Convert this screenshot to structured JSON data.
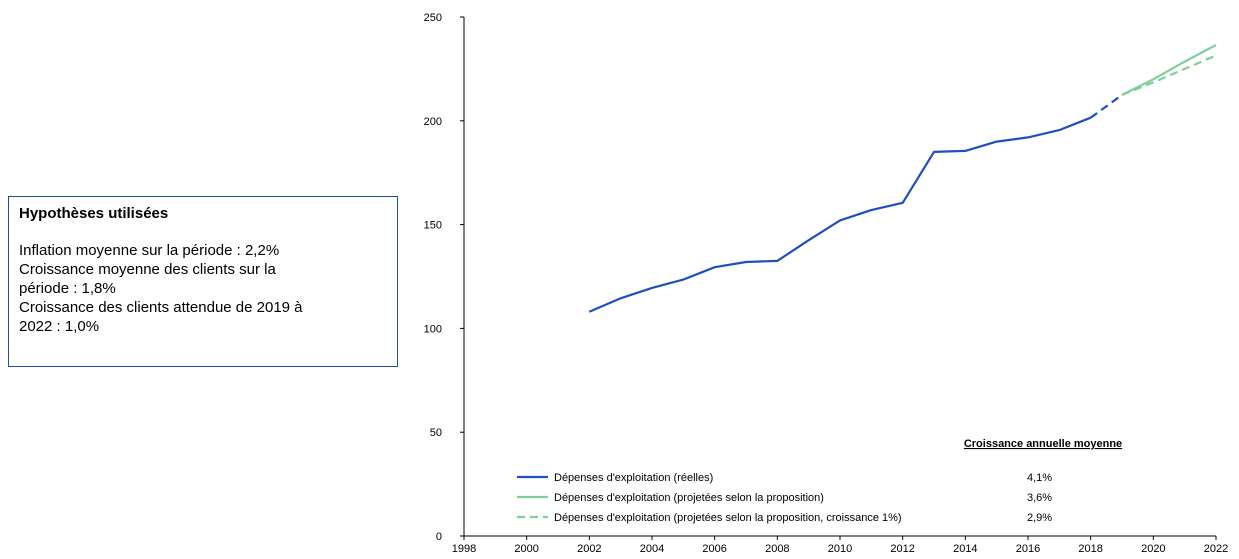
{
  "hypotheses": {
    "title": "Hypothèses utilisées",
    "lines": [
      "Inflation moyenne sur la période : 2,2%",
      "Croissance moyenne des clients sur la",
      "période : 1,8%",
      "Croissance des clients attendue de 2019 à",
      "2022 : 1,0%"
    ]
  },
  "chart_data": {
    "type": "line",
    "xlim": [
      1998,
      2022
    ],
    "ylim": [
      0,
      250
    ],
    "x_ticks": [
      1998,
      2000,
      2002,
      2004,
      2006,
      2008,
      2010,
      2012,
      2014,
      2016,
      2018,
      2020,
      2022
    ],
    "y_ticks": [
      0,
      50,
      100,
      150,
      200,
      250
    ],
    "grid": false,
    "legend_position": "bottom-right",
    "legend_header": "Croissance annuelle moyenne",
    "series": [
      {
        "name": "Dépenses d'exploitation (réelles)",
        "growth": "4,1%",
        "color": "#1f4fc0",
        "style": "solid",
        "points": [
          [
            2002,
            108
          ],
          [
            2003,
            114.5
          ],
          [
            2004,
            119.5
          ],
          [
            2005,
            123.5
          ],
          [
            2006,
            129.5
          ],
          [
            2007,
            132
          ],
          [
            2008,
            132.5
          ],
          [
            2009,
            142.5
          ],
          [
            2010,
            152
          ],
          [
            2011,
            157
          ],
          [
            2012,
            160.5
          ],
          [
            2013,
            185
          ],
          [
            2014,
            185.5
          ],
          [
            2015,
            190
          ],
          [
            2016,
            192
          ],
          [
            2017,
            195.5
          ],
          [
            2018,
            201.5
          ]
        ]
      },
      {
        "name": "",
        "growth": "",
        "color": "#1f4fc0",
        "style": "dashed",
        "points": [
          [
            2018,
            201.5
          ],
          [
            2019,
            212.5
          ]
        ]
      },
      {
        "name": "Dépenses d'exploitation (projetées selon la proposition)",
        "growth": "3,6%",
        "color": "#7fcf9a",
        "style": "solid",
        "points": [
          [
            2019,
            212.5
          ],
          [
            2020,
            220
          ],
          [
            2021,
            228.5
          ],
          [
            2022,
            236.5
          ]
        ]
      },
      {
        "name": "Dépenses d'exploitation (projetées selon la proposition, croissance 1%)",
        "growth": "2,9%",
        "color": "#7fcf9a",
        "style": "dashed",
        "points": [
          [
            2019,
            212.5
          ],
          [
            2020,
            218.5
          ],
          [
            2021,
            225
          ],
          [
            2022,
            231.5
          ]
        ]
      }
    ]
  }
}
